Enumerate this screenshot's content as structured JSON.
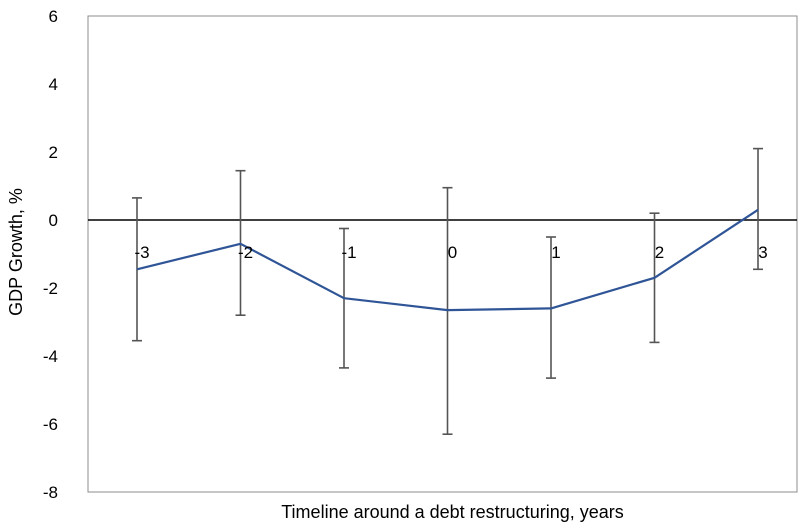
{
  "chart_data": {
    "type": "line",
    "xlabel": "Timeline around a debt restructuring, years",
    "ylabel": "GDP Growth, %",
    "x": [
      -3,
      -2,
      -1,
      0,
      1,
      2,
      3
    ],
    "x_tick_labels": [
      "-3",
      "-2",
      "-1",
      "0",
      "1",
      "2",
      "3"
    ],
    "ylim": [
      -8,
      6
    ],
    "y_ticks": [
      6,
      4,
      2,
      0,
      -2,
      -4,
      -6,
      -8
    ],
    "y_tick_labels": [
      "6",
      "4",
      "2",
      "0",
      "-2",
      "-4",
      "-6",
      "-8"
    ],
    "grid": false,
    "legend": "none",
    "series": [
      {
        "values": [
          -1.45,
          -0.7,
          -2.3,
          -2.65,
          -2.6,
          -1.7,
          0.3
        ],
        "error_low": [
          -3.55,
          -2.8,
          -4.35,
          -6.3,
          -4.65,
          -3.6,
          -1.45
        ],
        "error_high": [
          0.65,
          1.45,
          -0.25,
          0.95,
          -0.5,
          0.2,
          2.1
        ],
        "color": "#2f5597"
      }
    ],
    "error_bar_color": "#555555",
    "zero_line_color": "#000000",
    "frame_color": "#8c8c8c"
  }
}
